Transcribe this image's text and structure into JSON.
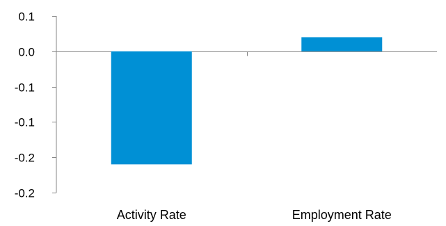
{
  "chart_data": {
    "type": "bar",
    "title": "",
    "xlabel": "",
    "ylabel": "",
    "categories": [
      "Activity Rate",
      "Employment Rate"
    ],
    "values": [
      -0.16,
      0.02
    ],
    "ylim": [
      -0.2,
      0.05
    ],
    "y_ticks": [
      0.05,
      0.0,
      -0.05,
      -0.1,
      -0.15,
      -0.2
    ],
    "y_tick_labels": [
      "0.1",
      "0.0",
      "-0.1",
      "-0.1",
      "-0.2",
      "-0.2"
    ],
    "grid": false,
    "legend": "none",
    "bar_color": "#0090D5",
    "axis_color": "#868686"
  }
}
